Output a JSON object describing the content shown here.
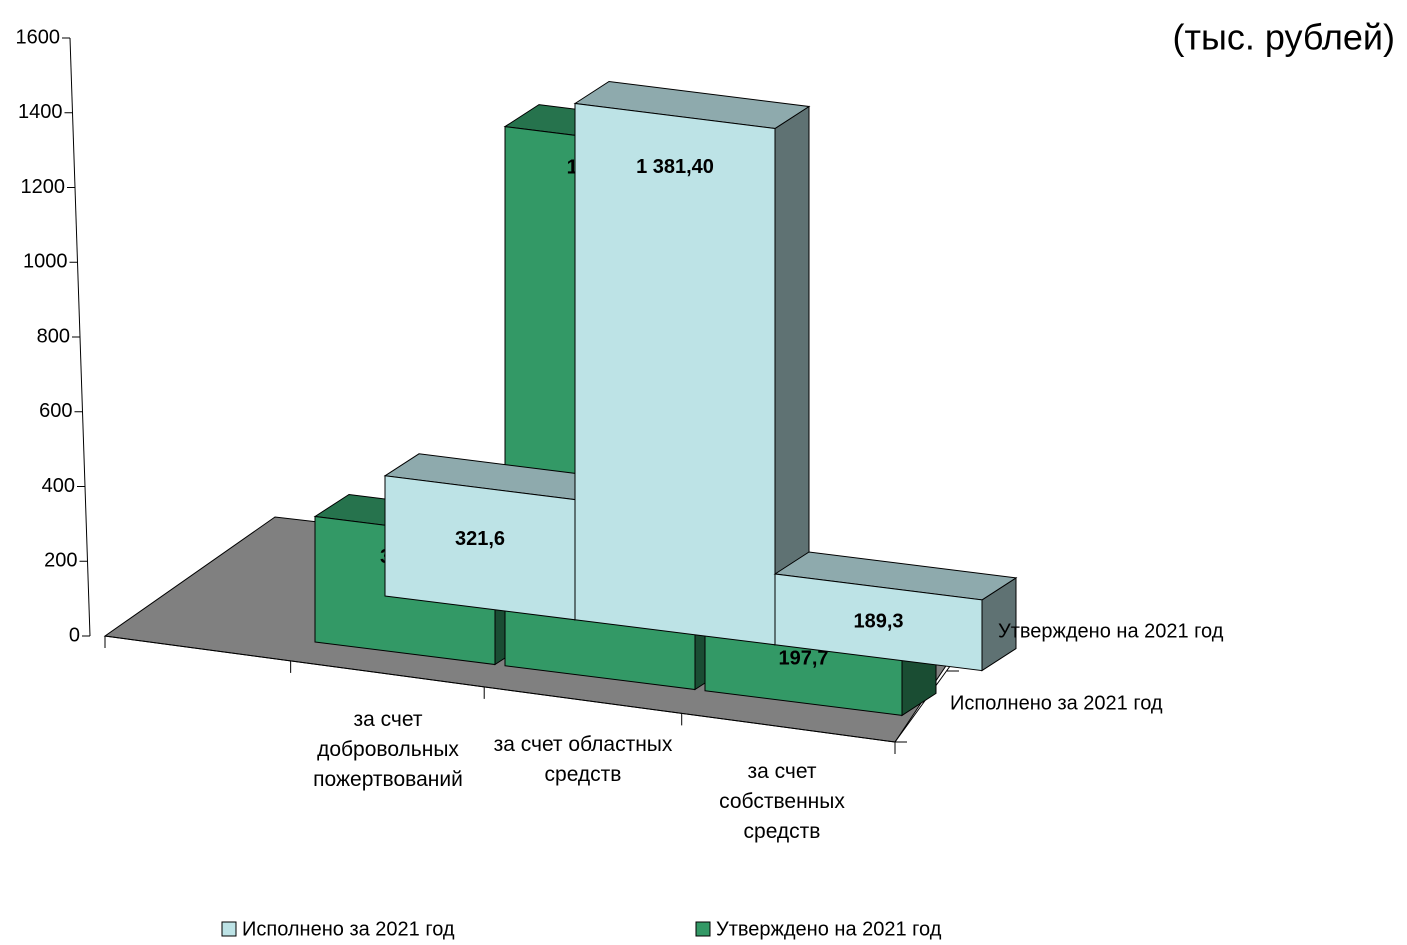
{
  "chart_data": {
    "type": "bar3d",
    "annotation": "(тыс. рублей)",
    "categories": [
      "за счет добровольных пожертвований",
      "за счет областных средств",
      "за счет собственных средств"
    ],
    "series": [
      {
        "name": "Исполнено за 2021 год",
        "color": "#bde3e6",
        "values": [
          321.6,
          1381.4,
          189.3
        ],
        "value_labels": [
          "321,6",
          "1 381,40",
          "189,3"
        ]
      },
      {
        "name": "Утверждено на 2021 год",
        "color": "#339966",
        "values": [
          335.9,
          1442.6,
          197.7
        ],
        "value_labels": [
          "335,9",
          "1 442,6",
          "197,7"
        ]
      }
    ],
    "ylim": [
      0,
      1600
    ],
    "yticks": [
      0,
      200,
      400,
      600,
      800,
      1000,
      1200,
      1400,
      1600
    ]
  }
}
